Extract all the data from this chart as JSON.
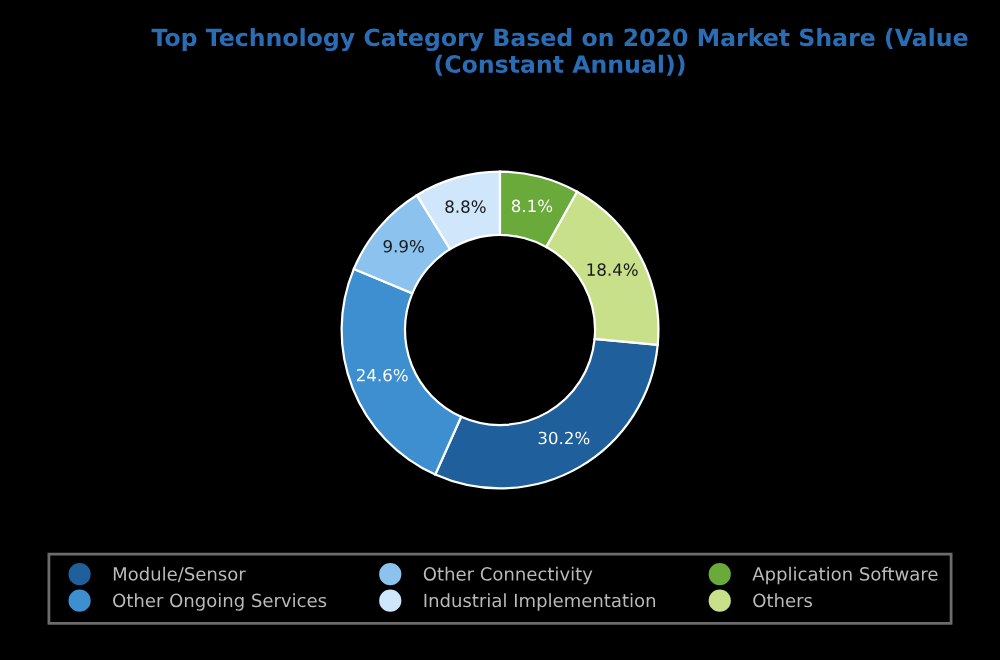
{
  "chart_data": {
    "type": "donut",
    "title": "Top Technology Category Based on 2020 Market Share (Value\n(Constant Annual))",
    "categories": [
      "Module/Sensor",
      "Other Ongoing Services",
      "Other Connectivity",
      "Industrial Implementation",
      "Application Software",
      "Others"
    ],
    "values": [
      30.2,
      24.6,
      9.9,
      8.8,
      8.1,
      18.4
    ],
    "value_labels": [
      "30.2%",
      "24.6%",
      "9.9%",
      "8.8%",
      "8.1%",
      "18.4%"
    ],
    "colors": [
      "#1f5f9c",
      "#3d8fd0",
      "#8cc3ee",
      "#cfe6fb",
      "#6aaa3a",
      "#c8e08a"
    ],
    "legend": "bottom"
  }
}
